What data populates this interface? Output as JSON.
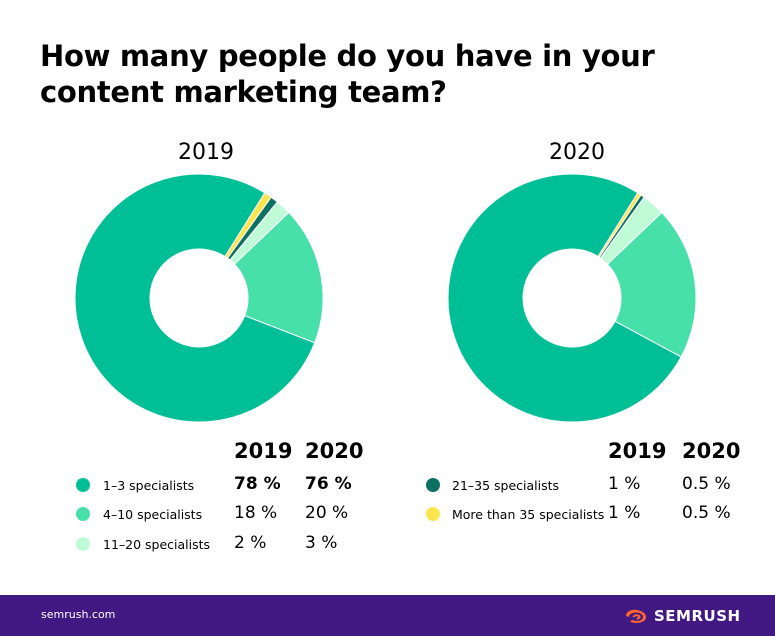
{
  "title": "How many people do you have in your content marketing team?",
  "colors": {
    "1-3": "#00bf97",
    "4-10": "#47e0a8",
    "11-20": "#c0fbd8",
    "21-35": "#0b7163",
    "35+": "#ffe54d",
    "footer": "#421983",
    "brand_icon": "#ff642d"
  },
  "chart_data": [
    {
      "type": "pie",
      "title": "2019",
      "categories": [
        "1–3 specialists",
        "4–10 specialists",
        "11–20 specialists",
        "21–35 specialists",
        "More than 35 specialists"
      ],
      "values": [
        78,
        18,
        2,
        1,
        1
      ],
      "unit": "%"
    },
    {
      "type": "pie",
      "title": "2020",
      "categories": [
        "1–3 specialists",
        "4–10 specialists",
        "11–20 specialists",
        "21–35 specialists",
        "More than 35 specialists"
      ],
      "values": [
        76,
        20,
        3,
        0.5,
        0.5
      ],
      "unit": "%"
    }
  ],
  "legend": {
    "head_2019": "2019",
    "head_2020": "2020",
    "left": [
      {
        "label": "1–3 specialists",
        "v2019": "78 %",
        "v2020": "76 %"
      },
      {
        "label": "4–10 specialists",
        "v2019": "18 %",
        "v2020": "20 %"
      },
      {
        "label": "11–20 specialists",
        "v2019": "2 %",
        "v2020": "3 %"
      }
    ],
    "right": [
      {
        "label": "21–35 specialists",
        "v2019": "1 %",
        "v2020": "0.5 %"
      },
      {
        "label": "More than 35 specialists",
        "v2019": "1 %",
        "v2020": "0.5 %"
      }
    ]
  },
  "footer": {
    "site": "semrush.com",
    "brand": "SEMRUSH"
  }
}
